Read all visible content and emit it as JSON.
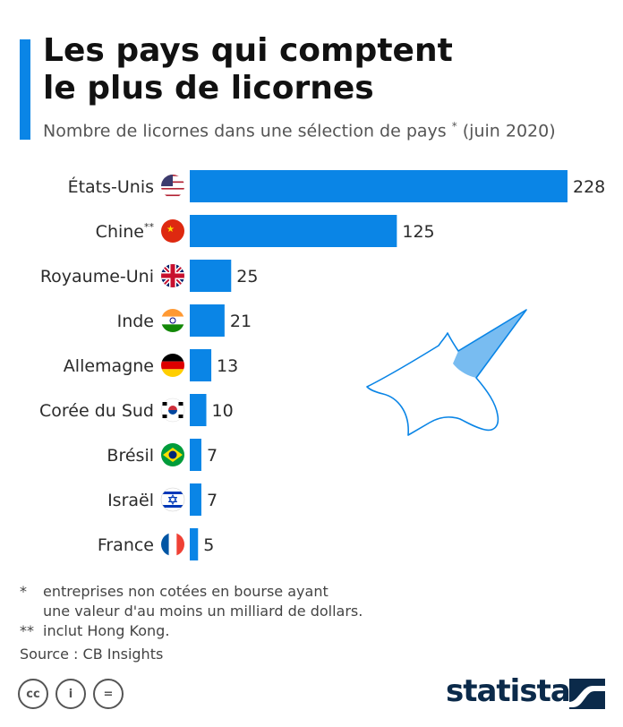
{
  "title_line1": "Les pays qui comptent",
  "title_line2": "le plus de licornes",
  "subtitle": "Nombre de licornes dans une sélection de pays",
  "subtitle_mark": "*",
  "subtitle_date": "(juin 2020)",
  "accent_color": "#0a85e6",
  "chart_data": {
    "type": "bar",
    "orientation": "horizontal",
    "categories": [
      "États-Unis",
      "Chine",
      "Royaume-Uni",
      "Inde",
      "Allemagne",
      "Corée du Sud",
      "Brésil",
      "Israël",
      "France"
    ],
    "category_marks": [
      "",
      "**",
      "",
      "",
      "",
      "",
      "",
      "",
      ""
    ],
    "values": [
      228,
      125,
      25,
      21,
      13,
      10,
      7,
      7,
      5
    ],
    "value_labels": [
      "228",
      "125",
      "25",
      "21",
      "13",
      "10",
      "7",
      "7",
      "5"
    ],
    "xlim": [
      0,
      228
    ],
    "grid": false,
    "bar_color": "#0a85e6"
  },
  "footnotes": {
    "f1_mark": "*",
    "f1_line1": "entreprises non cotées en bourse ayant",
    "f1_line2": "une valeur d'au moins un milliard de dollars.",
    "f2_mark": "**",
    "f2_text": "inclut Hong Kong.",
    "source": "Source : CB Insights"
  },
  "license": {
    "cc": "cc",
    "by": "i",
    "nd": "="
  },
  "brand": "statista",
  "icons": [
    "flag-us-icon",
    "flag-cn-icon",
    "flag-gb-icon",
    "flag-in-icon",
    "flag-de-icon",
    "flag-kr-icon",
    "flag-br-icon",
    "flag-il-icon",
    "flag-fr-icon",
    "unicorn-icon",
    "statista-logo-icon"
  ]
}
